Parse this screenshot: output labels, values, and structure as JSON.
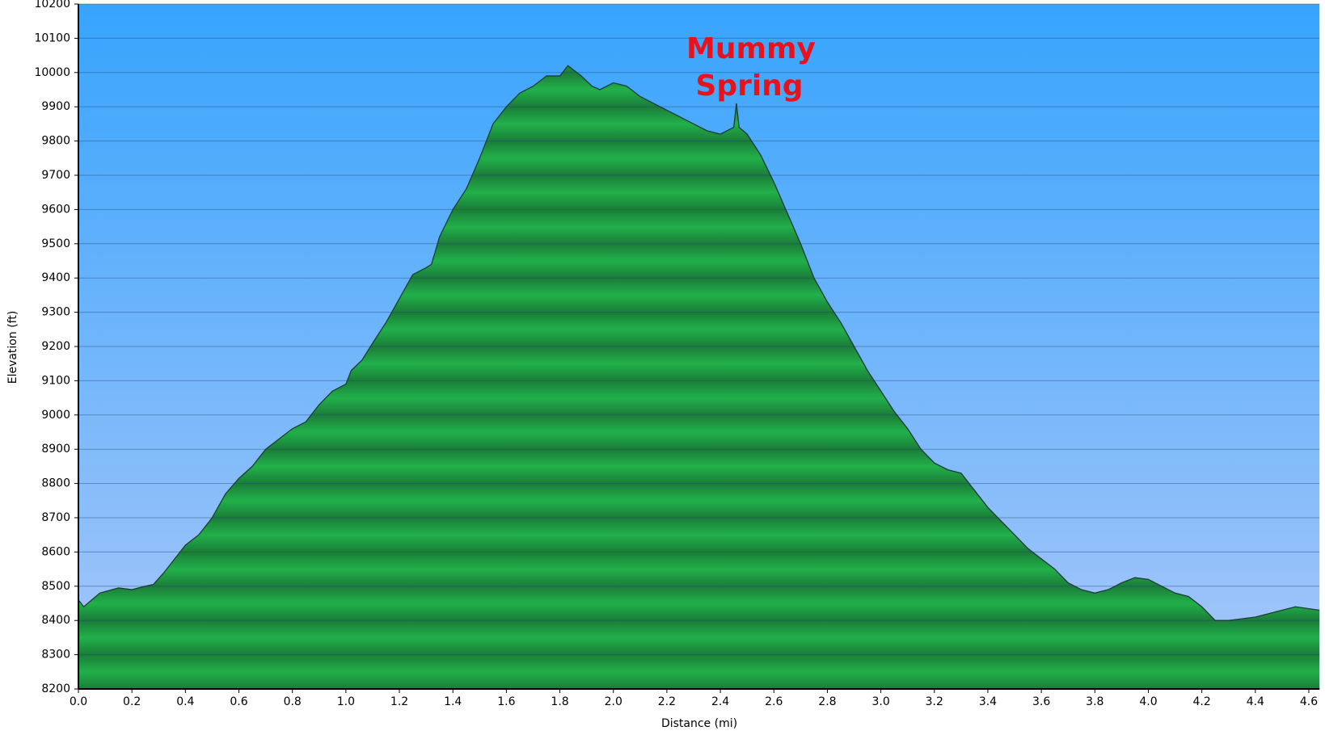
{
  "chart_data": {
    "type": "area",
    "ylabel": "Elevation (ft)",
    "xlabel": "Distance   (mi)",
    "annotation": [
      "Mummy",
      "Spring"
    ],
    "color": "#22b04a",
    "grid": true,
    "x": [
      0.0,
      0.02,
      0.05,
      0.08,
      0.15,
      0.2,
      0.25,
      0.28,
      0.32,
      0.36,
      0.4,
      0.45,
      0.5,
      0.55,
      0.6,
      0.65,
      0.7,
      0.75,
      0.8,
      0.85,
      0.9,
      0.95,
      1.0,
      1.02,
      1.06,
      1.1,
      1.15,
      1.2,
      1.25,
      1.3,
      1.32,
      1.35,
      1.4,
      1.45,
      1.5,
      1.55,
      1.6,
      1.65,
      1.7,
      1.75,
      1.8,
      1.83,
      1.88,
      1.92,
      1.95,
      2.0,
      2.05,
      2.1,
      2.15,
      2.2,
      2.25,
      2.3,
      2.35,
      2.4,
      2.45,
      2.46,
      2.47,
      2.5,
      2.55,
      2.6,
      2.65,
      2.7,
      2.75,
      2.8,
      2.85,
      2.9,
      2.95,
      3.0,
      3.05,
      3.1,
      3.15,
      3.2,
      3.25,
      3.3,
      3.35,
      3.4,
      3.45,
      3.5,
      3.55,
      3.6,
      3.65,
      3.7,
      3.75,
      3.8,
      3.85,
      3.9,
      3.95,
      4.0,
      4.05,
      4.1,
      4.15,
      4.2,
      4.25,
      4.3,
      4.4,
      4.45,
      4.5,
      4.55,
      4.64
    ],
    "values": [
      8460,
      8440,
      8460,
      8480,
      8495,
      8490,
      8500,
      8505,
      8540,
      8580,
      8620,
      8650,
      8700,
      8770,
      8815,
      8850,
      8900,
      8930,
      8960,
      8980,
      9030,
      9070,
      9090,
      9130,
      9160,
      9210,
      9270,
      9340,
      9410,
      9430,
      9440,
      9520,
      9600,
      9660,
      9750,
      9850,
      9900,
      9940,
      9960,
      9990,
      9990,
      10020,
      9990,
      9960,
      9950,
      9970,
      9960,
      9930,
      9910,
      9890,
      9870,
      9850,
      9830,
      9820,
      9840,
      9910,
      9840,
      9820,
      9760,
      9680,
      9590,
      9500,
      9400,
      9330,
      9270,
      9200,
      9130,
      9070,
      9010,
      8960,
      8900,
      8860,
      8840,
      8830,
      8780,
      8730,
      8690,
      8650,
      8610,
      8580,
      8550,
      8510,
      8490,
      8480,
      8490,
      8510,
      8525,
      8520,
      8500,
      8480,
      8470,
      8440,
      8400,
      8400,
      8410,
      8420,
      8430,
      8440,
      8430
    ],
    "xlim": [
      0,
      4.64
    ],
    "ylim": [
      8200,
      10200
    ],
    "xticks": [
      {
        "value": 0,
        "label": "0.0"
      },
      0.2,
      0.4,
      0.6,
      0.8,
      {
        "value": 1,
        "label": "1.0"
      },
      1.2,
      1.4,
      1.6,
      1.8,
      {
        "value": 2,
        "label": "2.0"
      },
      2.2,
      2.4,
      2.6,
      2.8,
      {
        "value": 3,
        "label": "3.0"
      },
      3.2,
      3.4,
      3.6,
      3.8,
      {
        "value": 4,
        "label": "4.0"
      },
      4.2,
      4.4,
      4.6
    ],
    "yticks": [
      8200,
      8300,
      8400,
      8500,
      8600,
      8700,
      8800,
      8900,
      9000,
      9100,
      9200,
      9300,
      9400,
      9500,
      9600,
      9700,
      9800,
      9900,
      10000,
      10100,
      10200
    ]
  }
}
